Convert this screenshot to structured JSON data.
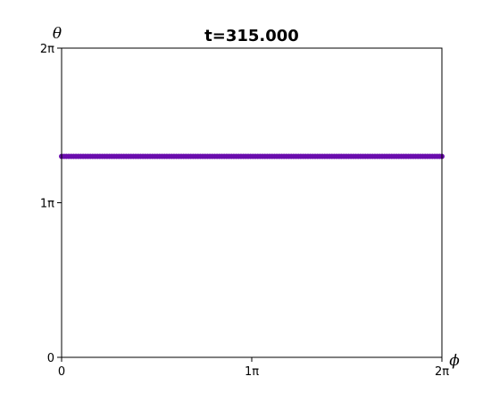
{
  "chart_data": {
    "type": "scatter",
    "title": "t=315.000",
    "xlabel": "ϕ",
    "ylabel": "θ",
    "x_unit": "π",
    "y_unit": "π",
    "xlim": [
      0,
      2
    ],
    "ylim": [
      0,
      2
    ],
    "x_ticks": [
      {
        "value": 0,
        "label": "0"
      },
      {
        "value": 1,
        "label": "1π"
      },
      {
        "value": 2,
        "label": "2π"
      }
    ],
    "y_ticks": [
      {
        "value": 0,
        "label": "0"
      },
      {
        "value": 1,
        "label": "1π"
      },
      {
        "value": 2,
        "label": "2π"
      }
    ],
    "grid": false,
    "point_color": "#6a0dad",
    "series": [
      {
        "theta_value": 1.3,
        "phi_range": [
          0,
          2
        ],
        "point_count": 160
      }
    ]
  }
}
